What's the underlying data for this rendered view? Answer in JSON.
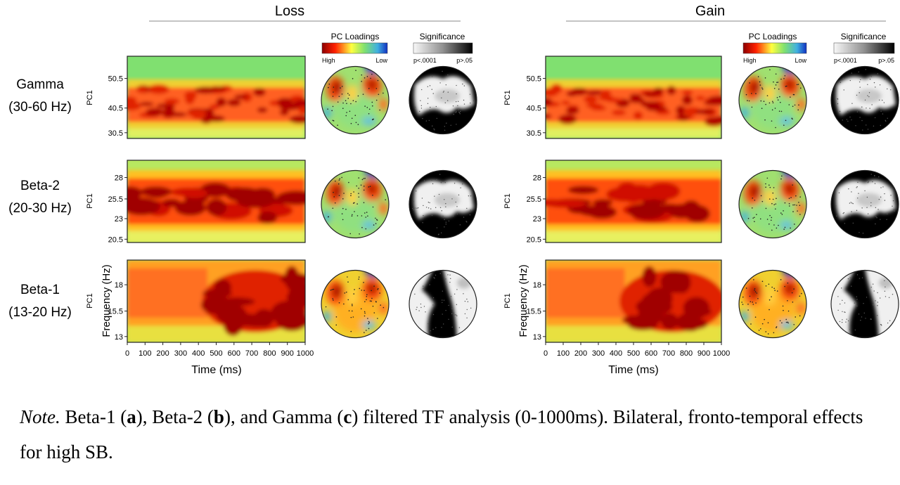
{
  "figure": {
    "panels": [
      {
        "condition": "Loss"
      },
      {
        "condition": "Gain"
      }
    ],
    "bands": [
      {
        "name": "Gamma",
        "range": "(30-60 Hz)",
        "yticks": [
          "50.5",
          "40.5",
          "30.5"
        ]
      },
      {
        "name": "Beta-2",
        "range": "(20-30 Hz)",
        "yticks": [
          "28",
          "25.5",
          "23",
          "20.5"
        ]
      },
      {
        "name": "Beta-1",
        "range": "(13-20 Hz)",
        "yticks": [
          "18",
          "15.5",
          "13"
        ]
      }
    ],
    "ylabel_pc": "PC1",
    "ylabel_freq": "Frequency (Hz)",
    "xticks": [
      "0",
      "100",
      "200",
      "300",
      "400",
      "500",
      "600",
      "700",
      "800",
      "900",
      "1000"
    ],
    "xlabel": "Time (ms)",
    "legend_loadings": {
      "title": "PC Loadings",
      "high": "High",
      "low": "Low"
    },
    "legend_significance": {
      "title": "Significance",
      "low": "p<.0001",
      "high": "p>.05"
    },
    "colors": {
      "jet_high": "#8b0000",
      "jet_mid": "#ffff40",
      "jet_base": "#80e070",
      "jet_low": "#1030c0",
      "sig_dark": "#000000",
      "sig_light": "#f0f0f0"
    }
  },
  "caption": {
    "note": "Note.",
    "part1": " Beta-1 (",
    "a": "a",
    "part2": "), Beta-2 (",
    "b": "b",
    "part3": "), and Gamma (",
    "c": "c",
    "part4": ") filtered TF analysis (0-1000ms). Bilateral, fronto-temporal effects for high SB."
  }
}
